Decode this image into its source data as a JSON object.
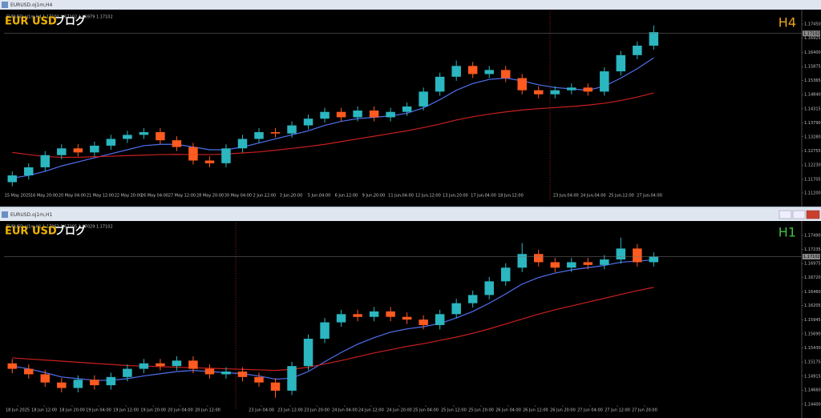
{
  "chart_data": [
    {
      "type": "candlestick",
      "window_title": "EURUSD.oj1m,H4",
      "info": "EURUSD.oj1m,H4  1.17102 1.17102 1.16979 1.17102",
      "brand": "EUR USD",
      "brand_suffix": "ブログ",
      "timeframe": "H4",
      "timeframe_color": "#e8a21a",
      "up_color": "#2bb6c0",
      "down_color": "#ff5a1f",
      "grid": false,
      "xlim": [
        -0.5,
        48
      ],
      "ylim": [
        1.10933,
        1.17865
      ],
      "xticks": [
        {
          "value": 0.33,
          "label": "15 May 2025"
        },
        {
          "value": 1.94,
          "label": "16 May 20:00"
        },
        {
          "value": 3.64,
          "label": "20 May 04:00"
        },
        {
          "value": 5.35,
          "label": "21 May 12:00"
        },
        {
          "value": 7.05,
          "label": "22 May 20:00"
        },
        {
          "value": 8.66,
          "label": "26 May 04:00"
        },
        {
          "value": 10.32,
          "label": "27 May 12:00"
        },
        {
          "value": 12.03,
          "label": "28 May 20:00"
        },
        {
          "value": 13.73,
          "label": "30 May 04:00"
        },
        {
          "value": 15.34,
          "label": "2 Jun 12:00"
        },
        {
          "value": 16.95,
          "label": "3 Jun 20:00"
        },
        {
          "value": 18.66,
          "label": "5 Jun 04:00"
        },
        {
          "value": 20.31,
          "label": "6 Jun 12:00"
        },
        {
          "value": 21.97,
          "label": "9 Jun 20:00"
        },
        {
          "value": 23.63,
          "label": "11 Jun 04:00"
        },
        {
          "value": 25.28,
          "label": "12 Jun 12:00"
        },
        {
          "value": 26.94,
          "label": "13 Jun 20:00"
        },
        {
          "value": 28.65,
          "label": "17 Jun 04:00"
        },
        {
          "value": 30.3,
          "label": "18 Jun 12:00"
        },
        {
          "value": 33.66,
          "label": "23 Jun 04:00"
        },
        {
          "value": 35.32,
          "label": "24 Jun 04:00"
        },
        {
          "value": 37.03,
          "label": "25 Jun 12:00"
        },
        {
          "value": 38.74,
          "label": "27 Jun 04:00"
        }
      ],
      "yticks": [
        {
          "value": 1.1745,
          "label": "1.17450"
        },
        {
          "value": 1.16925,
          "label": "1.16925"
        },
        {
          "value": 1.164,
          "label": "1.16400"
        },
        {
          "value": 1.15875,
          "label": "1.15875"
        },
        {
          "value": 1.15365,
          "label": "1.15365"
        },
        {
          "value": 1.1484,
          "label": "1.14840"
        },
        {
          "value": 1.14315,
          "label": "1.14315"
        },
        {
          "value": 1.1379,
          "label": "1.13790"
        },
        {
          "value": 1.1328,
          "label": "1.13280"
        },
        {
          "value": 1.12755,
          "label": "1.12755"
        },
        {
          "value": 1.1223,
          "label": "1.12230"
        },
        {
          "value": 1.11705,
          "label": "1.11705"
        },
        {
          "value": 1.112,
          "label": "1.11200"
        }
      ],
      "current_price": {
        "value": 1.17102,
        "label": "1.17102"
      },
      "open": [
        1.116,
        1.1185,
        1.1215,
        1.126,
        1.1285,
        1.127,
        1.1295,
        1.132,
        1.1335,
        1.1345,
        1.1315,
        1.129,
        1.124,
        1.123,
        1.1285,
        1.132,
        1.1345,
        1.134,
        1.137,
        1.1395,
        1.142,
        1.14,
        1.1425,
        1.14,
        1.142,
        1.144,
        1.1495,
        1.155,
        1.159,
        1.156,
        1.1575,
        1.1545,
        1.15,
        1.1485,
        1.15,
        1.151,
        1.1495,
        1.157,
        1.163,
        1.1665
      ],
      "high": [
        1.12,
        1.123,
        1.1275,
        1.13,
        1.13,
        1.131,
        1.1335,
        1.135,
        1.136,
        1.136,
        1.133,
        1.1305,
        1.1255,
        1.13,
        1.1335,
        1.136,
        1.136,
        1.1385,
        1.141,
        1.1435,
        1.1435,
        1.144,
        1.144,
        1.1435,
        1.1455,
        1.151,
        1.1565,
        1.161,
        1.1605,
        1.159,
        1.159,
        1.156,
        1.1515,
        1.1515,
        1.1525,
        1.1525,
        1.1585,
        1.1645,
        1.168,
        1.174
      ],
      "low": [
        1.1145,
        1.117,
        1.12,
        1.1245,
        1.1255,
        1.1255,
        1.128,
        1.1305,
        1.132,
        1.13,
        1.1275,
        1.1225,
        1.1215,
        1.1215,
        1.127,
        1.1305,
        1.1325,
        1.1325,
        1.1355,
        1.138,
        1.1385,
        1.1385,
        1.1385,
        1.1385,
        1.1405,
        1.1425,
        1.148,
        1.1535,
        1.1545,
        1.1545,
        1.153,
        1.1485,
        1.147,
        1.147,
        1.1485,
        1.148,
        1.148,
        1.1555,
        1.1615,
        1.165
      ],
      "close": [
        1.1185,
        1.1215,
        1.126,
        1.1285,
        1.127,
        1.1295,
        1.132,
        1.1335,
        1.1345,
        1.1315,
        1.129,
        1.124,
        1.123,
        1.1285,
        1.132,
        1.1345,
        1.134,
        1.137,
        1.1395,
        1.142,
        1.14,
        1.1425,
        1.14,
        1.142,
        1.144,
        1.1495,
        1.155,
        1.159,
        1.156,
        1.1575,
        1.1545,
        1.15,
        1.1485,
        1.15,
        1.151,
        1.1495,
        1.157,
        1.163,
        1.1665,
        1.1715
      ],
      "series": [
        {
          "color": "#5070f0",
          "values": [
            1.1175,
            1.1185,
            1.12,
            1.122,
            1.1235,
            1.125,
            1.1265,
            1.128,
            1.1295,
            1.13,
            1.13,
            1.129,
            1.128,
            1.128,
            1.129,
            1.1305,
            1.132,
            1.1335,
            1.135,
            1.137,
            1.1385,
            1.1395,
            1.14,
            1.1405,
            1.1415,
            1.1435,
            1.1465,
            1.15,
            1.1525,
            1.154,
            1.1545,
            1.1535,
            1.152,
            1.151,
            1.1505,
            1.15,
            1.1515,
            1.1545,
            1.158,
            1.162
          ]
        },
        {
          "color": "#c8201e",
          "values": [
            1.127,
            1.1262,
            1.1255,
            1.1252,
            1.1252,
            1.1254,
            1.1256,
            1.1258,
            1.126,
            1.1262,
            1.1263,
            1.1262,
            1.1262,
            1.1264,
            1.1268,
            1.1272,
            1.1278,
            1.1285,
            1.1292,
            1.13,
            1.131,
            1.132,
            1.133,
            1.134,
            1.135,
            1.1362,
            1.1375,
            1.139,
            1.1402,
            1.1412,
            1.142,
            1.1427,
            1.1432,
            1.1436,
            1.144,
            1.1445,
            1.1452,
            1.1462,
            1.1475,
            1.149
          ]
        }
      ]
    },
    {
      "type": "candlestick",
      "window_title": "EURUSD.oj1m,H1",
      "info": "EURUSD.oj1m,H1  1.17062 1.17105 1.17029 1.17102",
      "brand": "EUR USD",
      "brand_suffix": "ブログ",
      "timeframe": "H1",
      "timeframe_color": "#3fbf3f",
      "up_color": "#2bb6c0",
      "down_color": "#ff5a1f",
      "grid": false,
      "xlim": [
        -0.5,
        48
      ],
      "ylim": [
        1.14297,
        1.17724
      ],
      "xticks": [
        {
          "value": 0.33,
          "label": "18 Jun 2025"
        },
        {
          "value": 1.94,
          "label": "18 Jun 12:00"
        },
        {
          "value": 3.64,
          "label": "18 Jun 20:00"
        },
        {
          "value": 5.25,
          "label": "19 Jun 04:00"
        },
        {
          "value": 6.91,
          "label": "19 Jun 12:00"
        },
        {
          "value": 8.57,
          "label": "19 Jun 20:00"
        },
        {
          "value": 10.22,
          "label": "20 Jun 04:00"
        },
        {
          "value": 11.88,
          "label": "20 Jun 12:00"
        },
        {
          "value": 15.15,
          "label": "23 Jun 04:00"
        },
        {
          "value": 16.9,
          "label": "23 Jun 12:00"
        },
        {
          "value": 18.51,
          "label": "23 Jun 20:00"
        },
        {
          "value": 20.21,
          "label": "24 Jun 04:00"
        },
        {
          "value": 21.82,
          "label": "24 Jun 12:00"
        },
        {
          "value": 23.53,
          "label": "24 Jun 20:00"
        },
        {
          "value": 25.14,
          "label": "25 Jun 04:00"
        },
        {
          "value": 26.84,
          "label": "25 Jun 12:00"
        },
        {
          "value": 28.5,
          "label": "25 Jun 20:00"
        },
        {
          "value": 30.16,
          "label": "26 Jun 04:00"
        },
        {
          "value": 31.81,
          "label": "26 Jun 12:00"
        },
        {
          "value": 33.47,
          "label": "26 Jun 20:00"
        },
        {
          "value": 35.13,
          "label": "27 Jun 04:00"
        },
        {
          "value": 36.79,
          "label": "27 Jun 12:00"
        },
        {
          "value": 38.44,
          "label": "27 Jun 20:00"
        }
      ],
      "yticks": [
        {
          "value": 1.1749,
          "label": "1.17490"
        },
        {
          "value": 1.17235,
          "label": "1.17235"
        },
        {
          "value": 1.16975,
          "label": "1.16975"
        },
        {
          "value": 1.1672,
          "label": "1.16720"
        },
        {
          "value": 1.1646,
          "label": "1.16460"
        },
        {
          "value": 1.16205,
          "label": "1.16205"
        },
        {
          "value": 1.15945,
          "label": "1.15945"
        },
        {
          "value": 1.1569,
          "label": "1.15690"
        },
        {
          "value": 1.1543,
          "label": "1.15430"
        },
        {
          "value": 1.15175,
          "label": "1.15175"
        },
        {
          "value": 1.14915,
          "label": "1.14915"
        },
        {
          "value": 1.1466,
          "label": "1.14660"
        },
        {
          "value": 1.144,
          "label": "1.14400"
        }
      ],
      "current_price": {
        "value": 1.17102,
        "label": "1.17102"
      },
      "open": [
        1.1515,
        1.1505,
        1.1495,
        1.148,
        1.147,
        1.1485,
        1.1475,
        1.149,
        1.1505,
        1.1515,
        1.151,
        1.152,
        1.1505,
        1.1495,
        1.15,
        1.149,
        1.148,
        1.1465,
        1.151,
        1.156,
        1.159,
        1.1605,
        1.16,
        1.161,
        1.16,
        1.1595,
        1.1585,
        1.1605,
        1.1625,
        1.164,
        1.1665,
        1.169,
        1.1715,
        1.17,
        1.169,
        1.17,
        1.1695,
        1.1705,
        1.1725,
        1.17
      ],
      "high": [
        1.1523,
        1.1513,
        1.1503,
        1.1488,
        1.1493,
        1.1493,
        1.1498,
        1.1513,
        1.1523,
        1.1523,
        1.1528,
        1.1528,
        1.1513,
        1.1508,
        1.1508,
        1.1498,
        1.1488,
        1.1518,
        1.1568,
        1.1598,
        1.1613,
        1.1613,
        1.1618,
        1.1618,
        1.1608,
        1.1603,
        1.1613,
        1.1633,
        1.1648,
        1.1673,
        1.1698,
        1.1735,
        1.1723,
        1.1708,
        1.1708,
        1.1708,
        1.1713,
        1.1745,
        1.1733,
        1.1718
      ],
      "low": [
        1.1497,
        1.1487,
        1.1472,
        1.1462,
        1.1462,
        1.1467,
        1.1467,
        1.1482,
        1.1497,
        1.1502,
        1.1502,
        1.1497,
        1.1487,
        1.1487,
        1.1482,
        1.1472,
        1.1452,
        1.1457,
        1.1502,
        1.1552,
        1.1582,
        1.1592,
        1.1592,
        1.1592,
        1.1587,
        1.1577,
        1.1577,
        1.1597,
        1.1617,
        1.1632,
        1.1657,
        1.1682,
        1.1692,
        1.1682,
        1.1682,
        1.1687,
        1.1687,
        1.1697,
        1.1692,
        1.1692
      ],
      "close": [
        1.1505,
        1.1495,
        1.148,
        1.147,
        1.1485,
        1.1475,
        1.149,
        1.1505,
        1.1515,
        1.151,
        1.152,
        1.1505,
        1.1495,
        1.15,
        1.149,
        1.148,
        1.1465,
        1.151,
        1.156,
        1.159,
        1.1605,
        1.16,
        1.161,
        1.16,
        1.1595,
        1.1585,
        1.1605,
        1.1625,
        1.164,
        1.1665,
        1.169,
        1.1715,
        1.17,
        1.169,
        1.17,
        1.1695,
        1.1705,
        1.1725,
        1.17,
        1.171
      ],
      "series": [
        {
          "color": "#5070f0",
          "values": [
            1.151,
            1.1505,
            1.1498,
            1.149,
            1.1487,
            1.1484,
            1.1484,
            1.1487,
            1.1492,
            1.1496,
            1.15,
            1.1502,
            1.15,
            1.1498,
            1.1496,
            1.1492,
            1.1486,
            1.1488,
            1.15,
            1.1518,
            1.1535,
            1.155,
            1.1562,
            1.1572,
            1.1578,
            1.1582,
            1.1588,
            1.1598,
            1.161,
            1.1625,
            1.1642,
            1.166,
            1.1672,
            1.168,
            1.1686,
            1.169,
            1.1694,
            1.17,
            1.1702,
            1.1704
          ]
        },
        {
          "color": "#c8201e",
          "values": [
            1.1525,
            1.1523,
            1.1521,
            1.1519,
            1.1517,
            1.1515,
            1.1513,
            1.1511,
            1.151,
            1.1509,
            1.1508,
            1.1507,
            1.1506,
            1.1505,
            1.1504,
            1.1503,
            1.1502,
            1.1504,
            1.1508,
            1.1514,
            1.152,
            1.1527,
            1.1534,
            1.154,
            1.1546,
            1.1551,
            1.1557,
            1.1563,
            1.157,
            1.1578,
            1.1587,
            1.1596,
            1.1605,
            1.1613,
            1.162,
            1.1627,
            1.1634,
            1.1641,
            1.1648,
            1.1654
          ]
        }
      ]
    }
  ]
}
